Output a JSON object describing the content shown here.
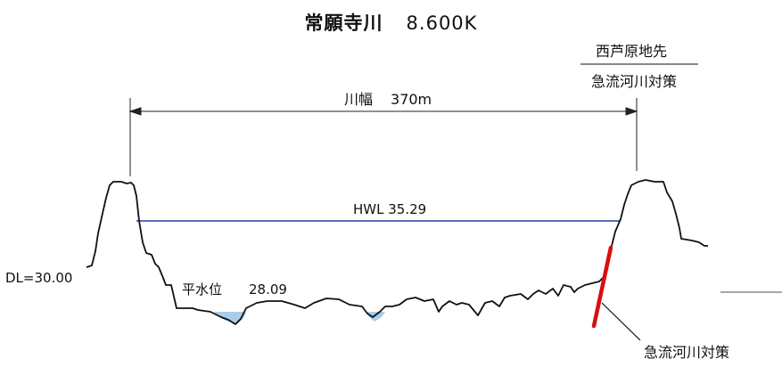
{
  "title": {
    "river": "常願寺川",
    "station": "8.600K"
  },
  "river_width": {
    "label": "川幅",
    "value": "370m"
  },
  "hwl": {
    "label": "HWL 35.29",
    "color": "#2a3f9a"
  },
  "datum": {
    "label": "DL=30.00"
  },
  "normal_water": {
    "label": "平水位",
    "value": "28.09",
    "fill": "#a9cdea"
  },
  "location": {
    "name": "西芦原地先"
  },
  "measure": {
    "name": "急流河川対策",
    "callout": "急流河川対策",
    "color": "#d80f0f"
  }
}
